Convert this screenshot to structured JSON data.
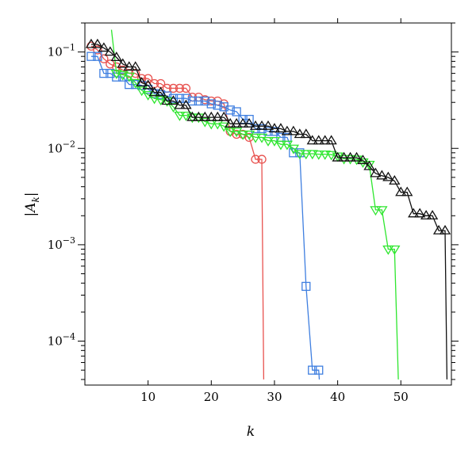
{
  "chart_data": {
    "type": "line",
    "title": "",
    "xlabel": "k",
    "ylabel": "|A_k|",
    "yscale": "log",
    "xlim": [
      0,
      58
    ],
    "ylim": [
      3.5e-05,
      0.2
    ],
    "x_ticks": [
      10,
      20,
      30,
      40,
      50
    ],
    "x_tick_labels": [
      "10",
      "20",
      "30",
      "40",
      "50"
    ],
    "y_ticks": [
      0.1,
      0.01,
      0.001,
      0.0001
    ],
    "y_tick_labels": [
      {
        "base": "10",
        "exp": "−1"
      },
      {
        "base": "10",
        "exp": "−2"
      },
      {
        "base": "10",
        "exp": "−3"
      },
      {
        "base": "10",
        "exp": "−4"
      }
    ],
    "grid": false,
    "legend": "none",
    "series": [
      {
        "color": "#e8524f",
        "marker": "circle",
        "x": [
          1,
          2,
          3,
          4,
          5,
          6,
          7,
          8,
          9,
          10,
          11,
          12,
          13,
          14,
          15,
          16,
          17,
          18,
          19,
          20,
          21,
          22,
          23,
          24,
          25,
          26,
          27,
          28
        ],
        "y": [
          0.115,
          0.105,
          0.085,
          0.075,
          0.07,
          0.065,
          0.06,
          0.06,
          0.053,
          0.053,
          0.047,
          0.047,
          0.042,
          0.042,
          0.042,
          0.042,
          0.034,
          0.034,
          0.032,
          0.031,
          0.031,
          0.029,
          0.015,
          0.014,
          0.014,
          0.013,
          0.0077,
          0.0077
        ],
        "tail": [
          28.3,
          4e-05
        ]
      },
      {
        "color": "#3f7fe0",
        "marker": "square",
        "x": [
          1,
          2,
          3,
          4,
          5,
          6,
          7,
          8,
          9,
          10,
          11,
          12,
          13,
          14,
          15,
          16,
          17,
          18,
          19,
          20,
          21,
          22,
          23,
          24,
          25,
          26,
          27,
          28,
          29,
          30,
          31,
          32,
          33,
          34,
          35,
          36,
          37
        ],
        "y": [
          0.09,
          0.09,
          0.06,
          0.06,
          0.055,
          0.055,
          0.046,
          0.046,
          0.045,
          0.041,
          0.037,
          0.036,
          0.035,
          0.033,
          0.033,
          0.033,
          0.031,
          0.031,
          0.031,
          0.029,
          0.028,
          0.027,
          0.025,
          0.024,
          0.02,
          0.02,
          0.016,
          0.016,
          0.015,
          0.015,
          0.013,
          0.013,
          0.009,
          0.009,
          0.00037,
          5e-05,
          5e-05
        ],
        "tail": [
          37.1,
          4e-05
        ]
      },
      {
        "color": "#2ee62e",
        "marker": "triangle-down",
        "x": [
          5,
          6,
          7,
          8,
          9,
          10,
          11,
          12,
          13,
          14,
          15,
          16,
          17,
          18,
          19,
          20,
          21,
          22,
          23,
          24,
          25,
          26,
          27,
          28,
          29,
          30,
          31,
          32,
          33,
          34,
          35,
          36,
          37,
          38,
          39,
          40,
          41,
          42,
          43,
          44,
          45,
          46,
          47,
          48,
          49
        ],
        "y": [
          0.06,
          0.058,
          0.056,
          0.048,
          0.04,
          0.036,
          0.033,
          0.032,
          0.031,
          0.027,
          0.022,
          0.022,
          0.021,
          0.021,
          0.019,
          0.018,
          0.018,
          0.017,
          0.015,
          0.015,
          0.014,
          0.014,
          0.013,
          0.013,
          0.012,
          0.012,
          0.011,
          0.011,
          0.01,
          0.0088,
          0.0088,
          0.0088,
          0.0087,
          0.0087,
          0.0086,
          0.0083,
          0.0078,
          0.0078,
          0.0077,
          0.0072,
          0.0068,
          0.0023,
          0.0023,
          0.0009,
          0.0009
        ],
        "head": [
          4.2,
          0.17
        ],
        "tail": [
          49.6,
          4e-05
        ]
      },
      {
        "color": "#111111",
        "marker": "triangle-up",
        "x": [
          1,
          2,
          3,
          4,
          5,
          6,
          7,
          8,
          9,
          10,
          11,
          12,
          13,
          14,
          15,
          16,
          17,
          18,
          19,
          20,
          21,
          22,
          23,
          24,
          25,
          26,
          27,
          28,
          29,
          30,
          31,
          32,
          33,
          34,
          35,
          36,
          37,
          38,
          39,
          40,
          41,
          42,
          43,
          44,
          45,
          46,
          47,
          48,
          49,
          50,
          51,
          52,
          53,
          54,
          55,
          56,
          57
        ],
        "y": [
          0.12,
          0.12,
          0.11,
          0.1,
          0.088,
          0.075,
          0.07,
          0.07,
          0.048,
          0.045,
          0.038,
          0.038,
          0.031,
          0.031,
          0.028,
          0.028,
          0.021,
          0.021,
          0.021,
          0.021,
          0.021,
          0.021,
          0.018,
          0.018,
          0.018,
          0.018,
          0.017,
          0.017,
          0.017,
          0.016,
          0.016,
          0.015,
          0.015,
          0.014,
          0.014,
          0.012,
          0.012,
          0.012,
          0.012,
          0.008,
          0.008,
          0.008,
          0.008,
          0.0075,
          0.0065,
          0.0055,
          0.0052,
          0.005,
          0.0046,
          0.0035,
          0.0035,
          0.0021,
          0.0021,
          0.002,
          0.002,
          0.0014,
          0.0014
        ],
        "tail": [
          57.3,
          4e-05
        ]
      }
    ]
  }
}
